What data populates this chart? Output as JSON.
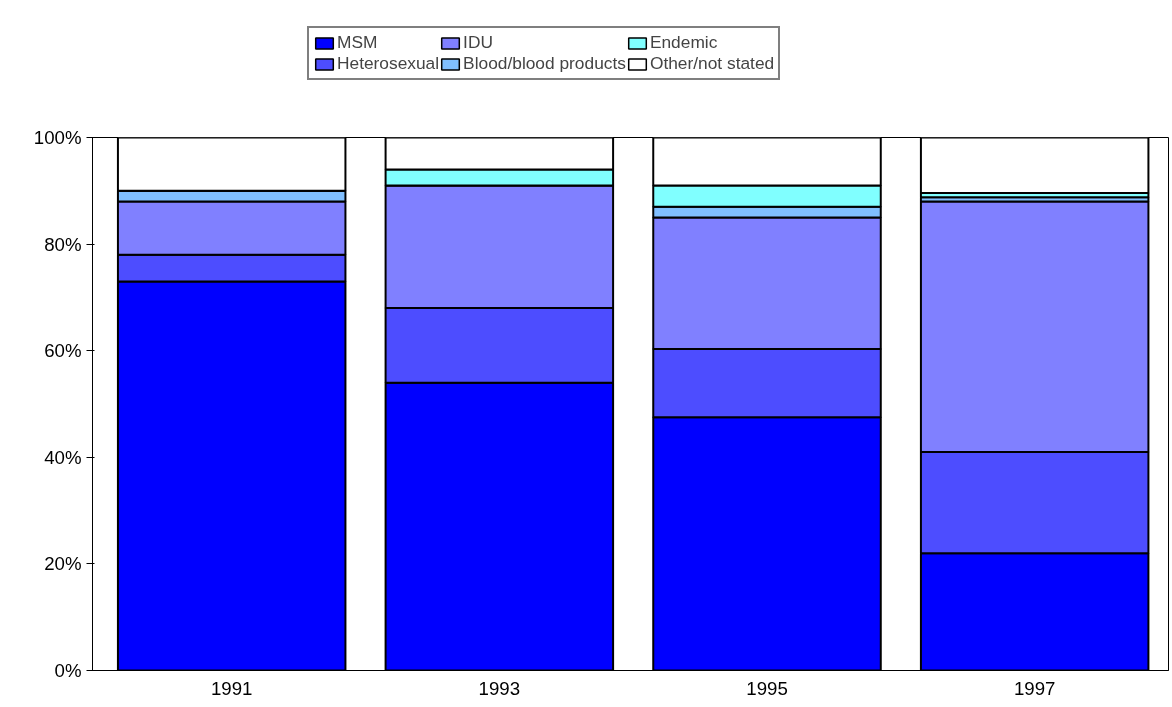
{
  "chart_data": {
    "type": "bar",
    "stacked": true,
    "categories": [
      "1991",
      "1993",
      "1995",
      "1997"
    ],
    "series": [
      {
        "name": "MSM",
        "color": "#0000ff",
        "values": [
          73,
          54,
          47.5,
          22
        ]
      },
      {
        "name": "Heterosexual",
        "color": "#4d4dff",
        "values": [
          5,
          14,
          12.8,
          19
        ]
      },
      {
        "name": "IDU",
        "color": "#8080ff",
        "values": [
          10,
          23,
          24.7,
          47
        ]
      },
      {
        "name": "Blood/blood products",
        "color": "#80bfff",
        "values": [
          2,
          0,
          2,
          0.8
        ]
      },
      {
        "name": "Endemic",
        "color": "#80ffff",
        "values": [
          0,
          3,
          4,
          0.8
        ]
      },
      {
        "name": "Other/not stated",
        "color": "#ffffff",
        "values": [
          10,
          6,
          9,
          10.4
        ]
      }
    ],
    "ylim": [
      0,
      100
    ],
    "yticks": [
      {
        "value": 0,
        "label": "0%"
      },
      {
        "value": 20,
        "label": "20%"
      },
      {
        "value": 40,
        "label": "40%"
      },
      {
        "value": 60,
        "label": "60%"
      },
      {
        "value": 80,
        "label": "80%"
      },
      {
        "value": 100,
        "label": "100%"
      }
    ],
    "grid": false,
    "legend": "top"
  }
}
